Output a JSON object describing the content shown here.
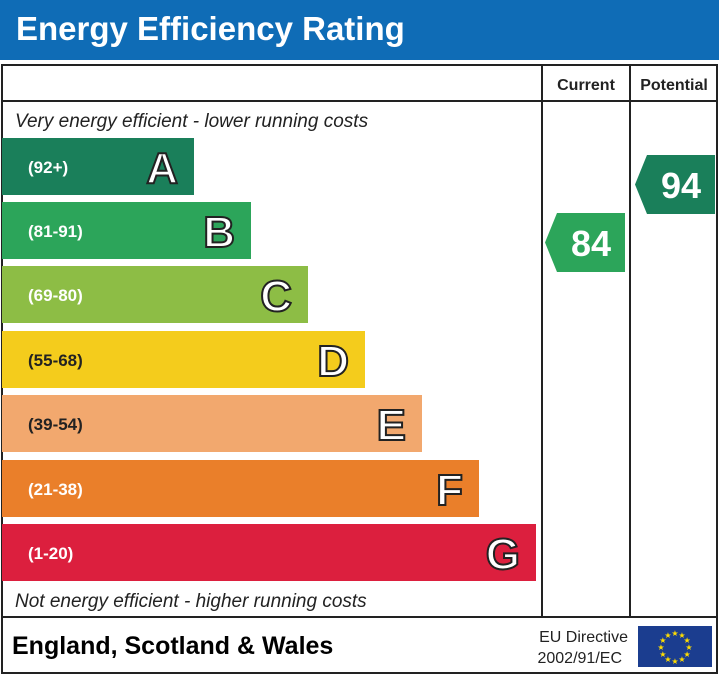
{
  "title": "Energy Efficiency Rating",
  "chart_data": {
    "type": "bar",
    "columns": {
      "current": "Current",
      "potential": "Potential"
    },
    "top_note": "Very energy efficient - lower running costs",
    "bottom_note": "Not energy efficient - higher running costs",
    "bands": [
      {
        "letter": "A",
        "range": "(92+)",
        "color": "#1a7f5a"
      },
      {
        "letter": "B",
        "range": "(81-91)",
        "color": "#2ca55a"
      },
      {
        "letter": "C",
        "range": "(69-80)",
        "color": "#8dbd45"
      },
      {
        "letter": "D",
        "range": "(55-68)",
        "color": "#f4cc1c"
      },
      {
        "letter": "E",
        "range": "(39-54)",
        "color": "#f2a86e"
      },
      {
        "letter": "F",
        "range": "(21-38)",
        "color": "#ea7f2a"
      },
      {
        "letter": "G",
        "range": "(1-20)",
        "color": "#dc1f3e"
      }
    ],
    "current": {
      "value": 84,
      "band": "B"
    },
    "potential": {
      "value": 94,
      "band": "A"
    }
  },
  "footer": {
    "region": "England, Scotland & Wales",
    "directive_line1": "EU Directive",
    "directive_line2": "2002/91/EC",
    "flag_icon": "eu-flag-icon"
  }
}
